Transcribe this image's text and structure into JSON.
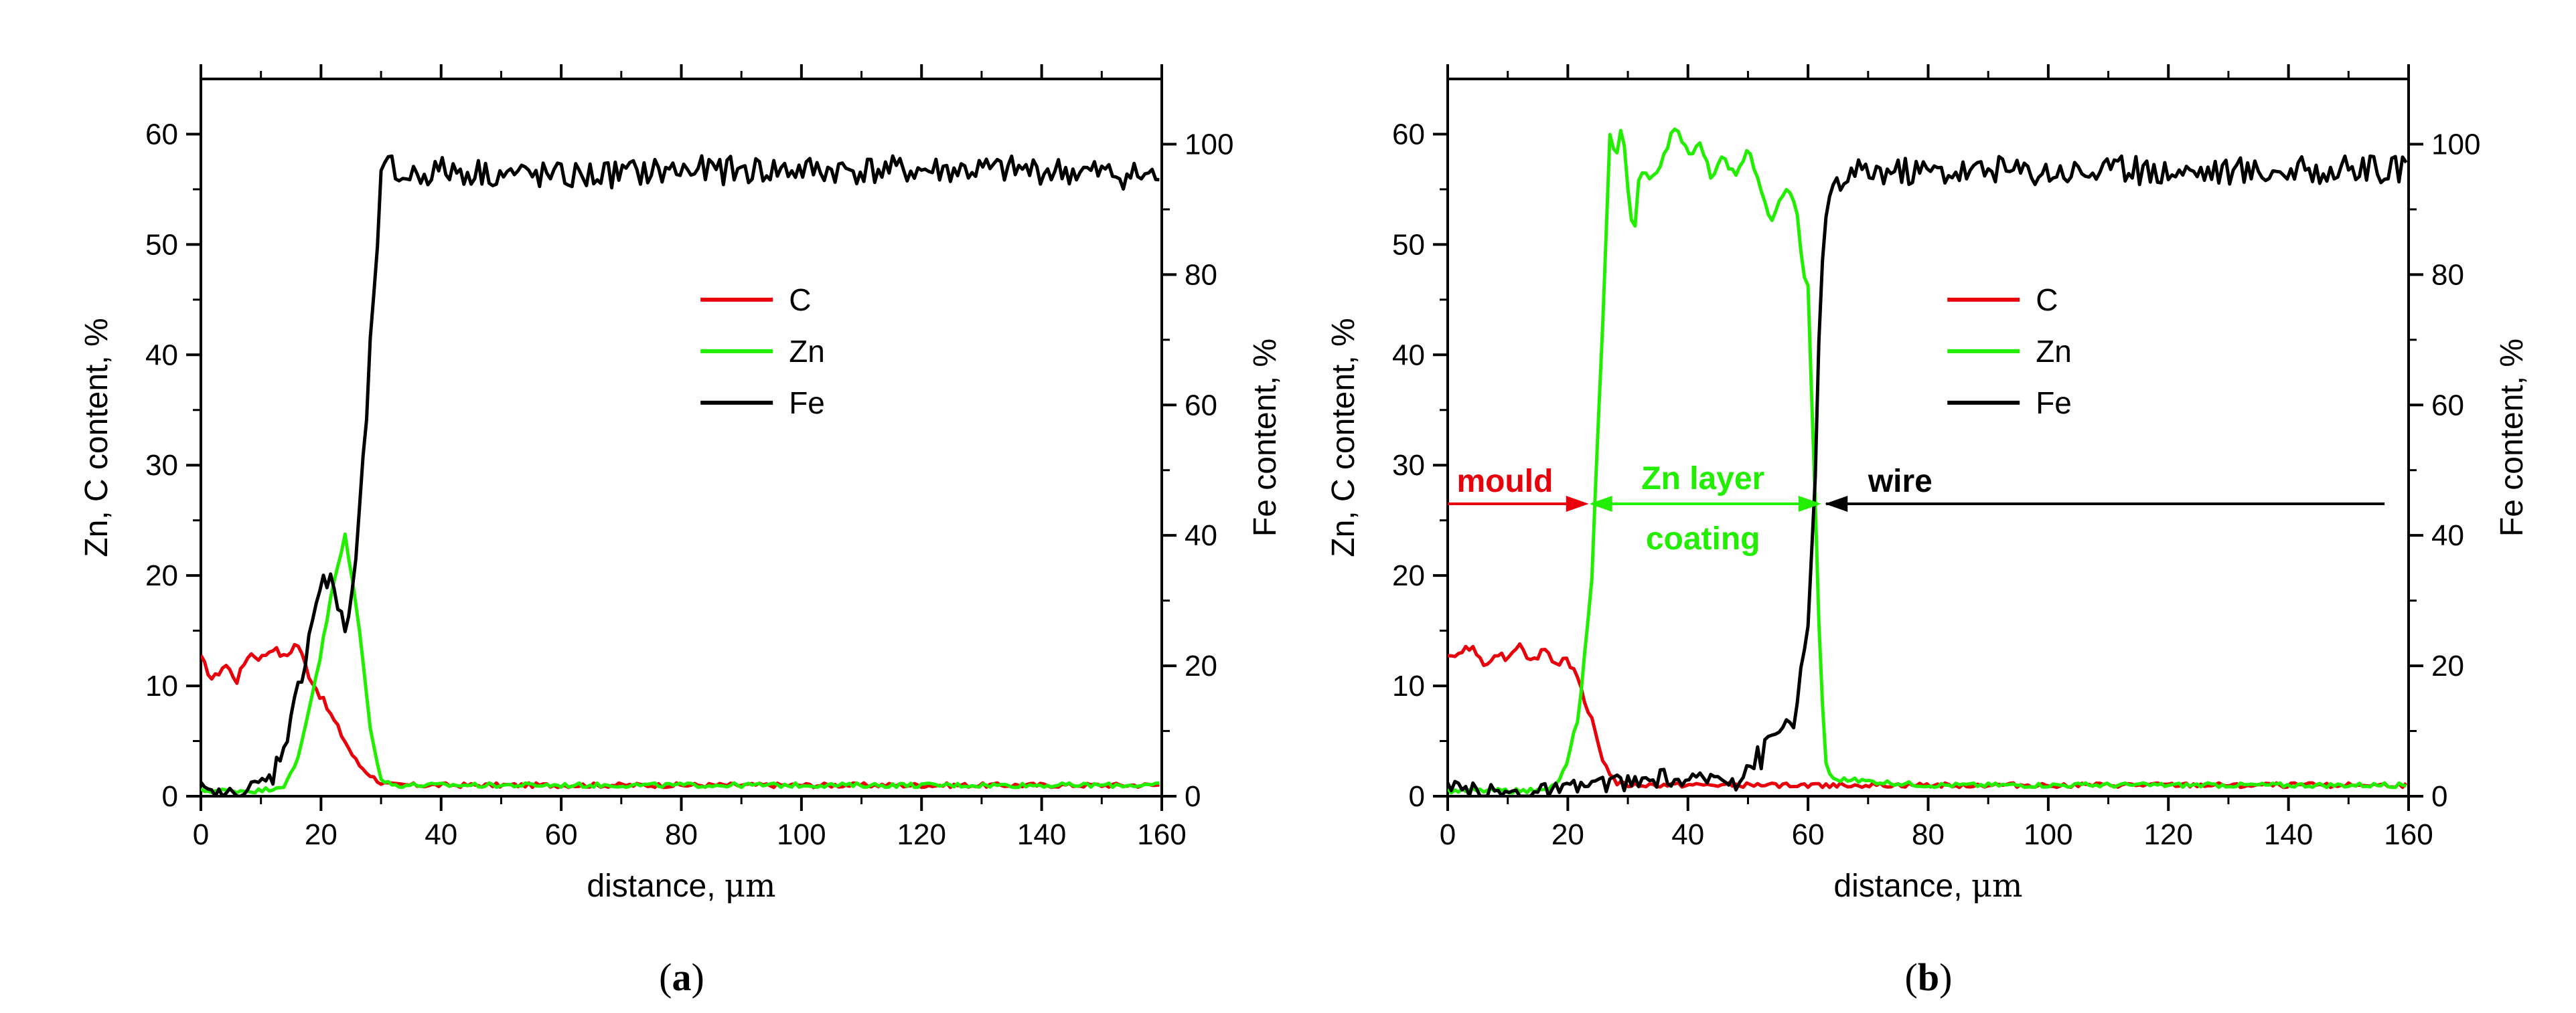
{
  "chart_data": [
    {
      "id": "a",
      "type": "line",
      "caption_open": "(",
      "caption_letter": "a",
      "caption_close": ")",
      "xlabel_main": "distance, ",
      "xlabel_unit": "μm",
      "ylabel_left": "Zn, C content, %",
      "ylabel_right": "Fe content, %",
      "xlim": [
        0,
        160
      ],
      "ylim_left": [
        0,
        65
      ],
      "ylim_right": [
        0,
        110
      ],
      "xticks": [
        0,
        20,
        40,
        60,
        80,
        100,
        120,
        140,
        160
      ],
      "yticks_left": [
        0,
        10,
        20,
        30,
        40,
        50,
        60
      ],
      "yticks_right": [
        0,
        20,
        40,
        60,
        80,
        100
      ],
      "legend_position": "right, upper middle",
      "series": [
        {
          "name": "C",
          "color": "#e8000b",
          "axis": "left",
          "x": [
            0,
            2,
            4,
            6,
            8,
            10,
            12,
            14,
            16,
            18,
            20,
            22,
            24,
            26,
            28,
            30,
            32,
            40,
            60,
            80,
            100,
            120,
            140,
            160
          ],
          "y": [
            12.5,
            10.5,
            12,
            10.5,
            13,
            12.5,
            13.5,
            12.5,
            14,
            11,
            9,
            7,
            5,
            3,
            2,
            1.2,
            1,
            1,
            1,
            1,
            1,
            1,
            1,
            1
          ]
        },
        {
          "name": "Zn",
          "color": "#22ee00",
          "axis": "left",
          "x": [
            0,
            10,
            14,
            16,
            18,
            20,
            22,
            24,
            26,
            28,
            30,
            32,
            40,
            60,
            80,
            100,
            120,
            140,
            160
          ],
          "y": [
            0.5,
            0.5,
            1,
            3,
            8,
            13,
            19,
            23.5,
            17,
            7,
            1.5,
            1,
            1,
            1,
            1,
            1,
            1,
            1,
            1
          ]
        },
        {
          "name": "Fe",
          "color": "#000000",
          "axis": "right",
          "x": [
            0,
            2,
            4,
            8,
            12,
            16,
            18,
            20,
            22,
            24,
            25,
            27,
            29,
            30,
            31,
            33,
            40,
            60,
            80,
            100,
            120,
            140,
            160
          ],
          "y": [
            1,
            0,
            0,
            1,
            3,
            15,
            25,
            33,
            32,
            26,
            28,
            50,
            80,
            94,
            97,
            95,
            96,
            95,
            96,
            96,
            96,
            96,
            95
          ]
        }
      ],
      "annotations": []
    },
    {
      "id": "b",
      "type": "line",
      "caption_open": "(",
      "caption_letter": "b",
      "caption_close": ")",
      "xlabel_main": "distance, ",
      "xlabel_unit": "μm",
      "ylabel_left": "Zn, C content, %",
      "ylabel_right": "Fe content, %",
      "xlim": [
        0,
        160
      ],
      "ylim_left": [
        0,
        65
      ],
      "ylim_right": [
        0,
        110
      ],
      "xticks": [
        0,
        20,
        40,
        60,
        80,
        100,
        120,
        140,
        160
      ],
      "yticks_left": [
        0,
        10,
        20,
        30,
        40,
        50,
        60
      ],
      "yticks_right": [
        0,
        20,
        40,
        60,
        80,
        100
      ],
      "legend_position": "right, upper middle",
      "series": [
        {
          "name": "C",
          "color": "#e8000b",
          "axis": "left",
          "x": [
            0,
            2,
            4,
            6,
            8,
            10,
            12,
            14,
            16,
            18,
            20,
            22,
            24,
            26,
            28,
            30,
            40,
            60,
            80,
            100,
            120,
            140,
            160
          ],
          "y": [
            12.5,
            13,
            13.5,
            12,
            13,
            12.5,
            14,
            12,
            13.5,
            12,
            12.5,
            10,
            7,
            3,
            1.2,
            1,
            1,
            1,
            1,
            1,
            1,
            1,
            1
          ]
        },
        {
          "name": "Zn",
          "color": "#22ee00",
          "axis": "left",
          "x": [
            0,
            16,
            18,
            20,
            22,
            24,
            25,
            26,
            27,
            28,
            29,
            30,
            31,
            32,
            34,
            36,
            38,
            40,
            42,
            44,
            46,
            48,
            50,
            52,
            54,
            56,
            58,
            59,
            60,
            61,
            62,
            63,
            64,
            66,
            80,
            100,
            120,
            140,
            160
          ],
          "y": [
            0.5,
            0.5,
            1,
            3,
            8,
            20,
            33,
            45,
            60,
            58,
            61,
            55,
            50,
            57,
            56,
            58,
            61,
            58,
            59,
            56,
            58,
            56,
            59,
            55,
            52,
            55,
            54,
            48,
            46,
            30,
            12,
            3,
            1.5,
            1.5,
            1,
            1,
            1,
            1,
            1
          ]
        },
        {
          "name": "Fe",
          "color": "#000000",
          "axis": "right",
          "x": [
            0,
            10,
            20,
            24,
            28,
            32,
            36,
            40,
            44,
            48,
            50,
            52,
            54,
            56,
            58,
            60,
            61,
            62,
            63,
            64,
            66,
            70,
            80,
            100,
            120,
            140,
            160
          ],
          "y": [
            1,
            0.5,
            1,
            2,
            2,
            2,
            3,
            2,
            3,
            3,
            5,
            6,
            9,
            11,
            13,
            25,
            45,
            75,
            90,
            92,
            95,
            96,
            96,
            96,
            96,
            96,
            96
          ]
        }
      ],
      "annotations": [
        {
          "text": "mould",
          "color": "#e8000b"
        },
        {
          "text": "Zn layer",
          "color": "#22ee00"
        },
        {
          "text": "coating",
          "color": "#22ee00"
        },
        {
          "text": "wire",
          "color": "#000000"
        }
      ]
    }
  ]
}
